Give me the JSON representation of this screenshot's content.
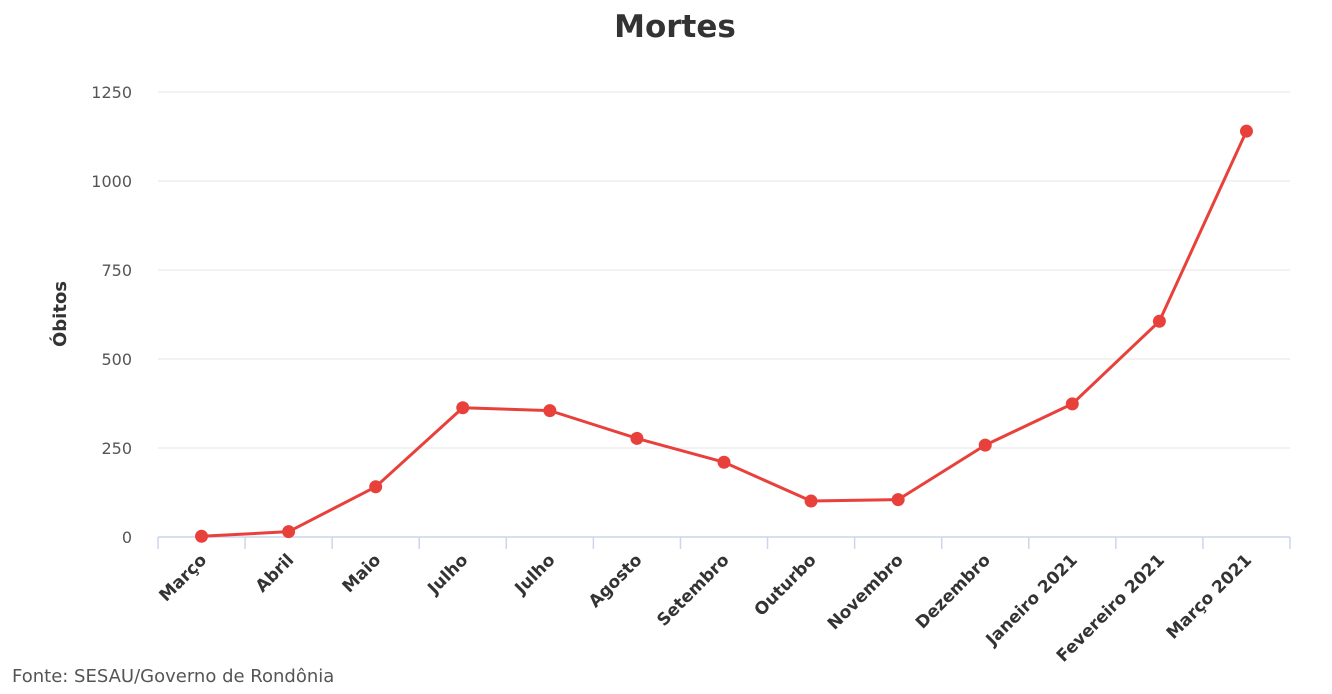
{
  "chart_data": {
    "type": "line",
    "title": "Mortes",
    "ylabel": "Óbitos",
    "xlabel": "",
    "categories": [
      "Março",
      "Abril",
      "Maio",
      "Julho",
      "Julho",
      "Agosto",
      "Setembro",
      "Outurbo",
      "Novembro",
      "Dezembro",
      "Janeiro 2021",
      "Fevereiro 2021",
      "Março 2021"
    ],
    "series": [
      {
        "values": [
          2,
          15,
          141,
          363,
          355,
          277,
          210,
          101,
          105,
          258,
          374,
          606,
          1140
        ]
      }
    ],
    "ylim": [
      0,
      1250
    ],
    "yticks": [
      0,
      250,
      500,
      750,
      1000,
      1250
    ],
    "grid": true,
    "color": "#e8413c"
  },
  "source": "Fonte: SESAU/Governo de Rondônia"
}
